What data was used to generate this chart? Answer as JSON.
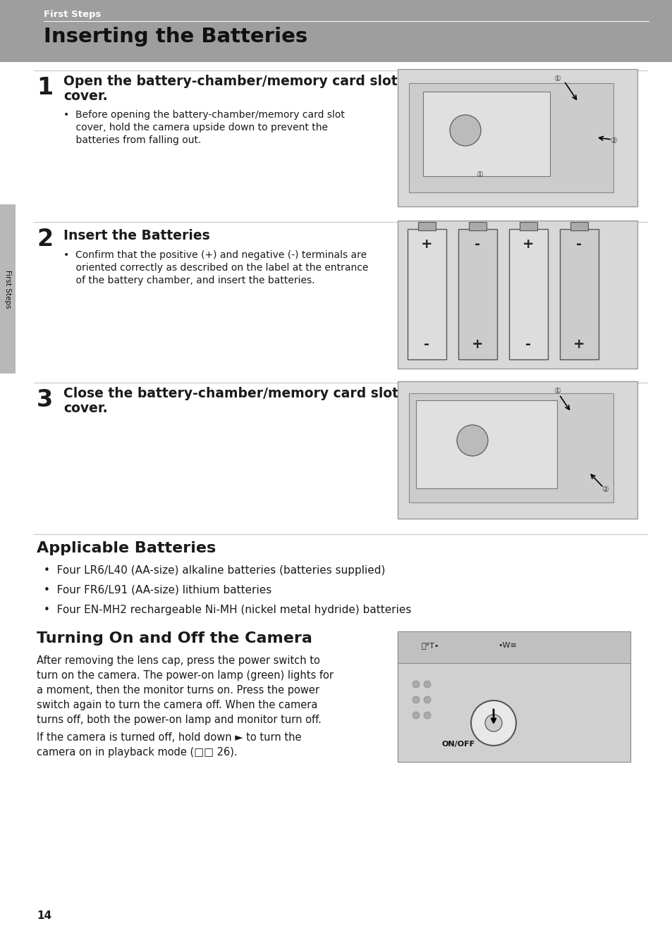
{
  "bg_color": "#ffffff",
  "header_bg": "#9e9e9e",
  "header_text": "First Steps",
  "header_text_color": "#ffffff",
  "title": "Inserting the Batteries",
  "title_color": "#000000",
  "sidebar_color": "#b8b8b8",
  "step1_number": "1",
  "step1_heading_line1": "Open the battery-chamber/memory card slot",
  "step1_heading_line2": "cover.",
  "step1_bullet_lines": [
    "Before opening the battery-chamber/memory card slot",
    "cover, hold the camera upside down to prevent the",
    "batteries from falling out."
  ],
  "step2_number": "2",
  "step2_heading": "Insert the Batteries",
  "step2_bullet_lines": [
    "Confirm that the positive (+) and negative (-) terminals are",
    "oriented correctly as described on the label at the entrance",
    "of the battery chamber, and insert the batteries."
  ],
  "step3_number": "3",
  "step3_heading_line1": "Close the battery-chamber/memory card slot",
  "step3_heading_line2": "cover.",
  "applicable_title": "Applicable Batteries",
  "applicable_bullets": [
    "Four LR6/L40 (AA-size) alkaline batteries (batteries supplied)",
    "Four FR6/L91 (AA-size) lithium batteries",
    "Four EN-MH2 rechargeable Ni-MH (nickel metal hydride) batteries"
  ],
  "turning_title": "Turning On and Off the Camera",
  "turning_body_lines": [
    "After removing the lens cap, press the power switch to",
    "turn on the camera. The power-on lamp (green) lights for",
    "a moment, then the monitor turns on. Press the power",
    "switch again to turn the camera off. When the camera",
    "turns off, both the power-on lamp and monitor turn off."
  ],
  "turning_body2_line1": "If the camera is turned off, hold down ► to turn the",
  "turning_body2_line2": "camera on in playback mode (□□ 26).",
  "page_number": "14",
  "sidebar_label": "First Steps",
  "text_color": "#1a1a1a",
  "line_color": "#c8c8c8",
  "step_num_color": "#1a1a1a",
  "img_face_color": "#d8d8d8",
  "img_edge_color": "#999999"
}
